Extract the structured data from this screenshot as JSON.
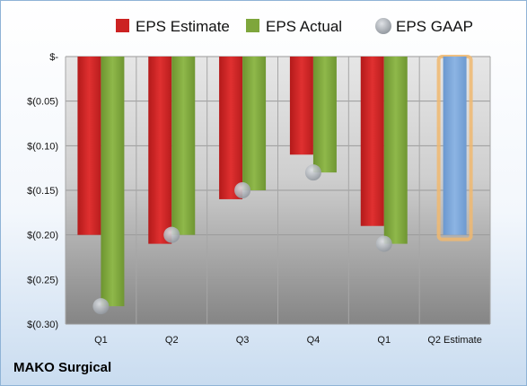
{
  "company_name": "MAKO Surgical",
  "chart_data": {
    "type": "bar",
    "categories": [
      "Q1",
      "Q2",
      "Q3",
      "Q4",
      "Q1",
      "Q2 Estimate"
    ],
    "series": [
      {
        "name": "EPS Estimate",
        "color": "#cc2222",
        "values": [
          -0.2,
          -0.21,
          -0.16,
          -0.11,
          -0.19,
          null
        ]
      },
      {
        "name": "EPS Actual",
        "color": "#7ea63c",
        "values": [
          -0.28,
          -0.2,
          -0.15,
          -0.13,
          -0.21,
          null
        ]
      },
      {
        "name": "EPS GAAP",
        "color": "#a8adb4",
        "kind": "marker",
        "values": [
          -0.28,
          -0.2,
          -0.15,
          -0.13,
          -0.21,
          null
        ]
      }
    ],
    "estimate_bar": {
      "category_index": 5,
      "value": -0.2,
      "color": "#7aa5d8",
      "outline_color": "#f0b870"
    },
    "y_ticks": [
      {
        "value": 0,
        "label": "$-"
      },
      {
        "value": -0.05,
        "label": "$(0.05)"
      },
      {
        "value": -0.1,
        "label": "$(0.10)"
      },
      {
        "value": -0.15,
        "label": "$(0.15)"
      },
      {
        "value": -0.2,
        "label": "$(0.20)"
      },
      {
        "value": -0.25,
        "label": "$(0.25)"
      },
      {
        "value": -0.3,
        "label": "$(0.30)"
      }
    ],
    "ylim": [
      -0.3,
      0
    ],
    "grid": true,
    "legend_position": "top"
  }
}
